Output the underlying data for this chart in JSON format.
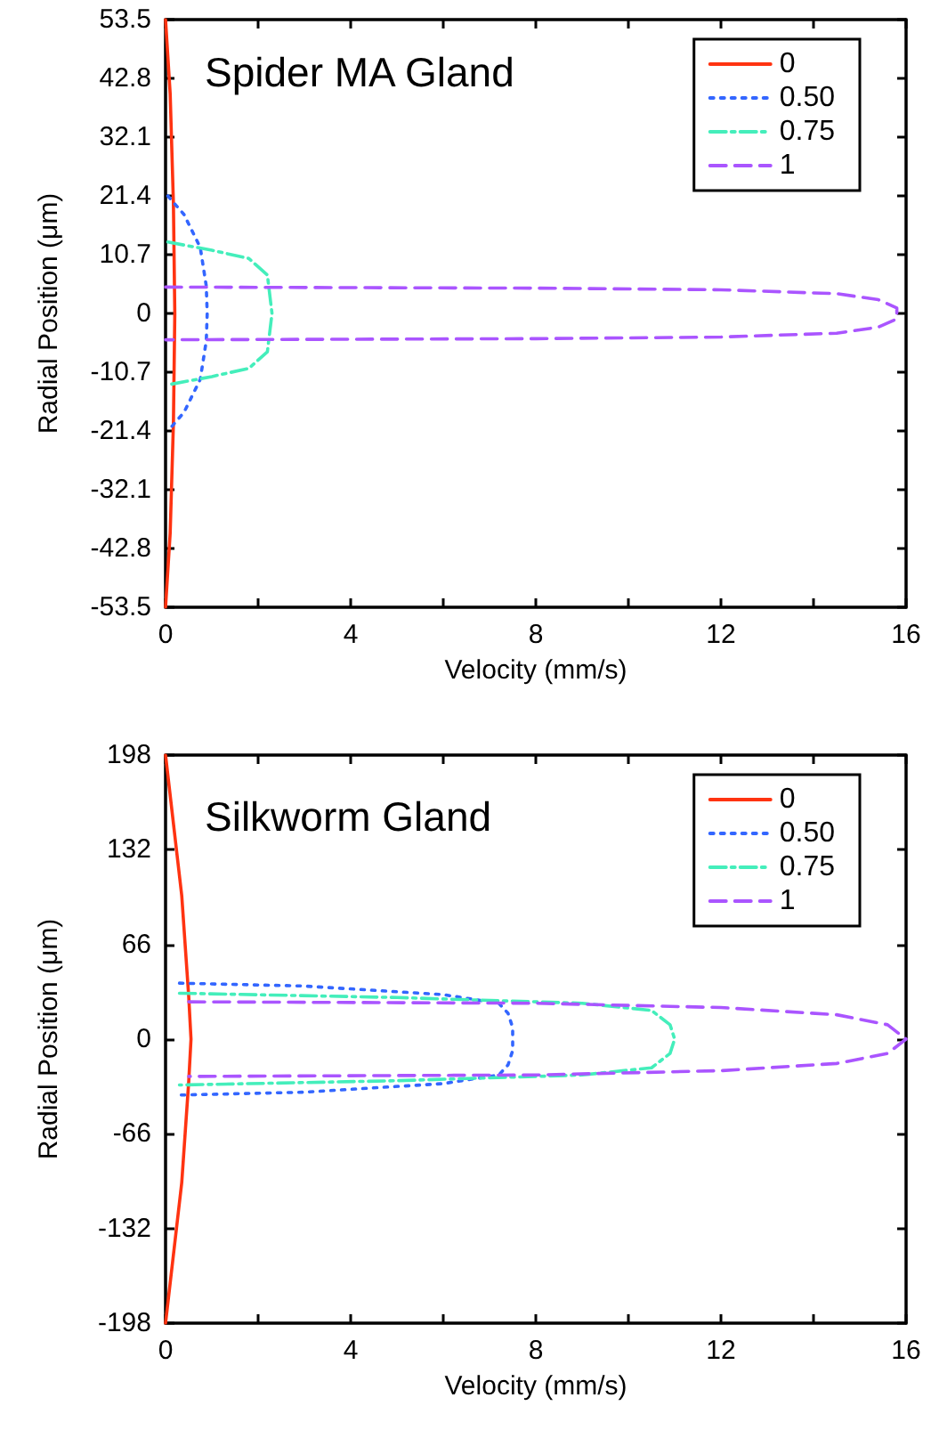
{
  "chart_data": [
    {
      "type": "line",
      "title": "Spider MA Gland",
      "xlabel": "Velocity (mm/s)",
      "ylabel": "Radial Position (μm)",
      "legend": "top right",
      "grid": false,
      "marker": "none",
      "xlim": [
        0,
        16
      ],
      "xticks": [
        0,
        {
          "value": 2,
          "label": null
        },
        4,
        {
          "value": 6,
          "label": null
        },
        8,
        {
          "value": 10,
          "label": null
        },
        12,
        {
          "value": 14,
          "label": null
        },
        16
      ],
      "ylim": [
        -53.5,
        53.5
      ],
      "yticks": [
        -53.5,
        -42.8,
        -32.1,
        -21.4,
        -10.7,
        0,
        10.7,
        21.4,
        32.1,
        42.8,
        53.5
      ],
      "series": [
        {
          "name": "0",
          "color": "#ff3311",
          "line_style": "solid",
          "x": [
            0,
            0.1,
            0.17,
            0.2,
            0.17,
            0.1,
            0
          ],
          "values": [
            53.5,
            40,
            20,
            0,
            -20,
            -40,
            -53.5
          ]
        },
        {
          "name": "0.50",
          "color": "#3366ff",
          "line_style": "dotted",
          "x": [
            0.05,
            0.4,
            0.75,
            0.88,
            0.9,
            0.88,
            0.75,
            0.4,
            0.05
          ],
          "values": [
            21.4,
            18,
            12,
            5,
            0,
            -5,
            -12,
            -18,
            -21.4
          ]
        },
        {
          "name": "0.75",
          "color": "#44eebb",
          "line_style": "dashdot",
          "x": [
            0.05,
            1,
            1.8,
            2.2,
            2.3,
            2.2,
            1.8,
            1,
            0.05
          ],
          "values": [
            13,
            11.5,
            10,
            7,
            0,
            -7,
            -10,
            -11.5,
            -13
          ]
        },
        {
          "name": "1",
          "color": "#aa55ff",
          "line_style": "dashed",
          "x": [
            0,
            8,
            12,
            14.5,
            15.4,
            15.8,
            15.8,
            15.8,
            15.4,
            14.5,
            12,
            8,
            0
          ],
          "values": [
            4.8,
            4.6,
            4.3,
            3.6,
            2.5,
            1,
            0,
            -1,
            -2.5,
            -3.6,
            -4.3,
            -4.6,
            -4.8
          ]
        }
      ]
    },
    {
      "type": "line",
      "title": "Silkworm Gland",
      "xlabel": "Velocity (mm/s)",
      "ylabel": "Radial Position (μm)",
      "legend": "top right",
      "grid": false,
      "marker": "none",
      "xlim": [
        0,
        16
      ],
      "xticks": [
        0,
        {
          "value": 2,
          "label": null
        },
        4,
        {
          "value": 6,
          "label": null
        },
        8,
        {
          "value": 10,
          "label": null
        },
        12,
        {
          "value": 14,
          "label": null
        },
        16
      ],
      "ylim": [
        -198,
        198
      ],
      "yticks": [
        -198,
        -132,
        -66,
        0,
        66,
        132,
        198
      ],
      "series": [
        {
          "name": "0",
          "color": "#ff3311",
          "line_style": "solid",
          "x": [
            0,
            0.35,
            0.5,
            0.55,
            0.5,
            0.35,
            0
          ],
          "values": [
            198,
            100,
            30,
            0,
            -30,
            -100,
            -198
          ]
        },
        {
          "name": "0.50",
          "color": "#3366ff",
          "line_style": "dotted",
          "x": [
            0.3,
            3,
            6,
            7.2,
            7.4,
            7.5,
            7.5,
            7.5,
            7.4,
            7.2,
            6,
            3,
            0.3
          ],
          "values": [
            39,
            37,
            31,
            25,
            18,
            8,
            0,
            -8,
            -18,
            -25,
            -31,
            -37,
            -39
          ]
        },
        {
          "name": "0.75",
          "color": "#44eebb",
          "line_style": "dashdot",
          "x": [
            0.3,
            5,
            9,
            10.5,
            10.9,
            11,
            10.9,
            10.5,
            9,
            5,
            0.3
          ],
          "values": [
            32,
            29,
            25,
            20,
            10,
            0,
            -10,
            -20,
            -25,
            -29,
            -32
          ]
        },
        {
          "name": "1",
          "color": "#aa55ff",
          "line_style": "dashed",
          "x": [
            0.5,
            8,
            12,
            14.5,
            15.6,
            16,
            15.6,
            14.5,
            12,
            8,
            0.5
          ],
          "values": [
            26,
            25,
            22,
            17,
            10,
            0,
            -10,
            -17,
            -22,
            -25,
            -26
          ]
        }
      ]
    }
  ]
}
